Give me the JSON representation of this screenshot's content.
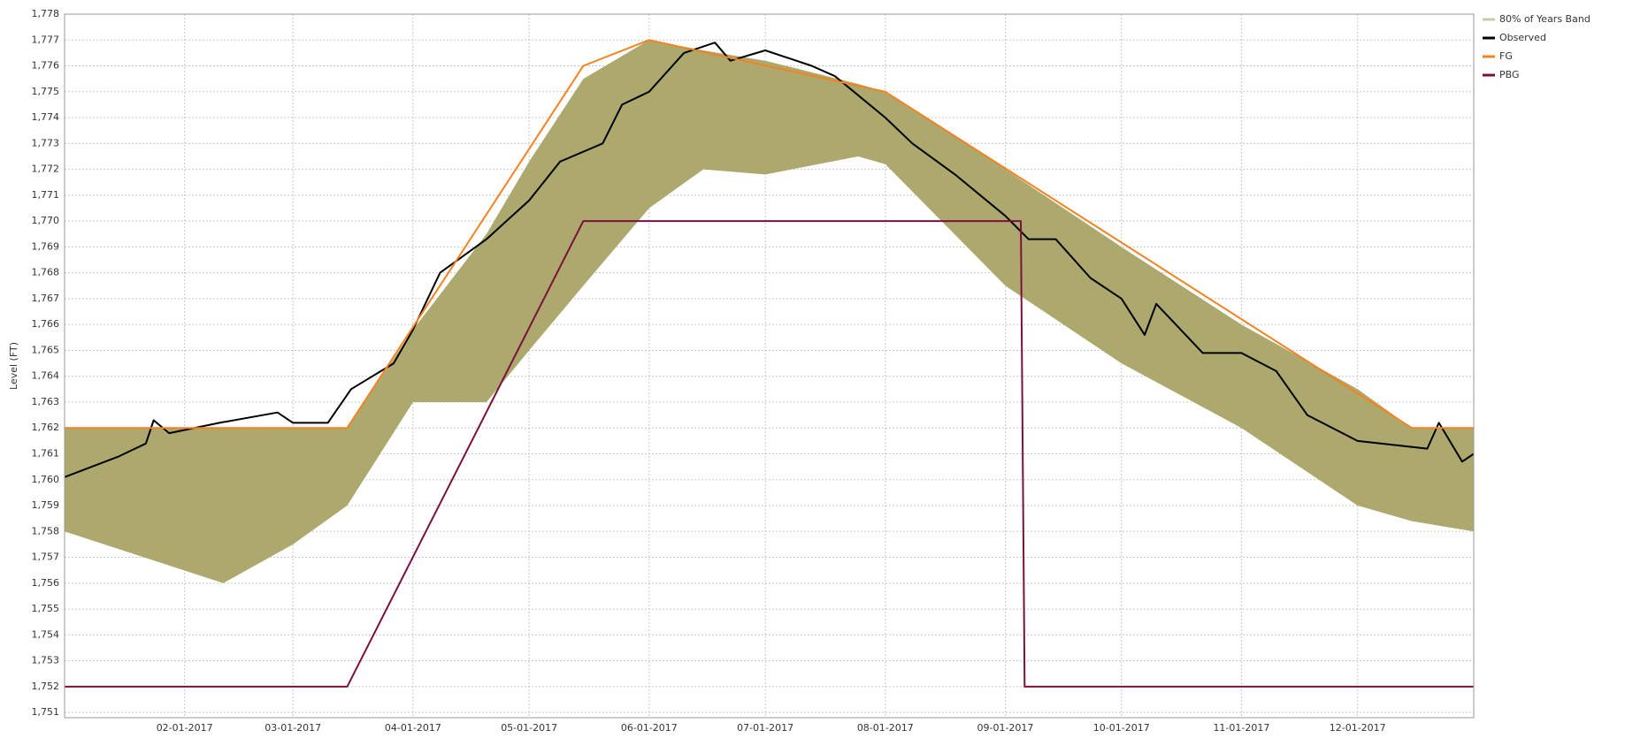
{
  "chart_data": {
    "type": "line",
    "ylabel": "Level (FT)",
    "xlim": [
      "2017-01-01",
      "2017-12-31"
    ],
    "xticks": [
      {
        "value": "2017-02-01",
        "label": "02-01-2017"
      },
      {
        "value": "2017-03-01",
        "label": "03-01-2017"
      },
      {
        "value": "2017-04-01",
        "label": "04-01-2017"
      },
      {
        "value": "2017-05-01",
        "label": "05-01-2017"
      },
      {
        "value": "2017-06-01",
        "label": "06-01-2017"
      },
      {
        "value": "2017-07-01",
        "label": "07-01-2017"
      },
      {
        "value": "2017-08-01",
        "label": "08-01-2017"
      },
      {
        "value": "2017-09-01",
        "label": "09-01-2017"
      },
      {
        "value": "2017-10-01",
        "label": "10-01-2017"
      },
      {
        "value": "2017-11-01",
        "label": "11-01-2017"
      },
      {
        "value": "2017-12-01",
        "label": "12-01-2017"
      }
    ],
    "ylim": [
      1750.8,
      1778
    ],
    "yticks": [
      {
        "value": 1751,
        "label": "1,751"
      },
      {
        "value": 1752,
        "label": "1,752"
      },
      {
        "value": 1753,
        "label": "1,753"
      },
      {
        "value": 1754,
        "label": "1,754"
      },
      {
        "value": 1755,
        "label": "1,755"
      },
      {
        "value": 1756,
        "label": "1,756"
      },
      {
        "value": 1757,
        "label": "1,757"
      },
      {
        "value": 1758,
        "label": "1,758"
      },
      {
        "value": 1759,
        "label": "1,759"
      },
      {
        "value": 1760,
        "label": "1,760"
      },
      {
        "value": 1761,
        "label": "1,761"
      },
      {
        "value": 1762,
        "label": "1,762"
      },
      {
        "value": 1763,
        "label": "1,763"
      },
      {
        "value": 1764,
        "label": "1,764"
      },
      {
        "value": 1765,
        "label": "1,765"
      },
      {
        "value": 1766,
        "label": "1,766"
      },
      {
        "value": 1767,
        "label": "1,767"
      },
      {
        "value": 1768,
        "label": "1,768"
      },
      {
        "value": 1769,
        "label": "1,769"
      },
      {
        "value": 1770,
        "label": "1,770"
      },
      {
        "value": 1771,
        "label": "1,771"
      },
      {
        "value": 1772,
        "label": "1,772"
      },
      {
        "value": 1773,
        "label": "1,773"
      },
      {
        "value": 1774,
        "label": "1,774"
      },
      {
        "value": 1775,
        "label": "1,775"
      },
      {
        "value": 1776,
        "label": "1,776"
      },
      {
        "value": 1777,
        "label": "1,777"
      },
      {
        "value": 1778,
        "label": "1,778"
      }
    ],
    "grid": true,
    "legend": "right",
    "series": [
      {
        "name": "80% of Years Band",
        "color": "#ada86d",
        "legend_color": "#c9c9a8",
        "x": [
          "2017-01-01",
          "2017-02-11",
          "2017-03-01",
          "2017-03-15",
          "2017-04-01",
          "2017-04-20",
          "2017-05-01",
          "2017-05-15",
          "2017-06-01",
          "2017-06-15",
          "2017-07-01",
          "2017-07-25",
          "2017-08-01",
          "2017-09-01",
          "2017-10-01",
          "2017-11-01",
          "2017-12-01",
          "2017-12-15",
          "2017-12-31"
        ],
        "upper": [
          1762,
          1762,
          1762,
          1762,
          1765.8,
          1769.5,
          1772.3,
          1775.5,
          1777,
          1776.6,
          1776.2,
          1775.3,
          1775,
          1772,
          1769,
          1766,
          1763.5,
          1762,
          1762
        ],
        "lower": [
          1758,
          1756,
          1757.5,
          1759,
          1763,
          1763,
          1765,
          1767.5,
          1770.5,
          1772,
          1771.8,
          1772.5,
          1772.2,
          1767.5,
          1764.5,
          1762,
          1759,
          1758.4,
          1758
        ]
      },
      {
        "name": "Observed",
        "color": "#000000",
        "x": [
          "2017-01-01",
          "2017-01-15",
          "2017-01-22",
          "2017-01-24",
          "2017-01-28",
          "2017-02-10",
          "2017-02-25",
          "2017-03-01",
          "2017-03-10",
          "2017-03-16",
          "2017-03-27",
          "2017-04-01",
          "2017-04-08",
          "2017-04-20",
          "2017-05-01",
          "2017-05-09",
          "2017-05-20",
          "2017-05-25",
          "2017-06-01",
          "2017-06-10",
          "2017-06-18",
          "2017-06-22",
          "2017-07-01",
          "2017-07-13",
          "2017-07-19",
          "2017-08-01",
          "2017-08-08",
          "2017-08-19",
          "2017-09-01",
          "2017-09-07",
          "2017-09-14",
          "2017-09-23",
          "2017-10-01",
          "2017-10-07",
          "2017-10-10",
          "2017-10-22",
          "2017-11-01",
          "2017-11-10",
          "2017-11-18",
          "2017-12-01",
          "2017-12-19",
          "2017-12-22",
          "2017-12-28",
          "2017-12-31"
        ],
        "values": [
          1760.1,
          1760.9,
          1761.4,
          1762.3,
          1761.8,
          1762.2,
          1762.6,
          1762.2,
          1762.2,
          1763.5,
          1764.5,
          1765.8,
          1768,
          1769.3,
          1770.8,
          1772.3,
          1773,
          1774.5,
          1775,
          1776.5,
          1776.9,
          1776.2,
          1776.6,
          1776,
          1775.6,
          1774,
          1773,
          1771.8,
          1770.2,
          1769.3,
          1769.3,
          1767.8,
          1767,
          1765.6,
          1766.8,
          1764.9,
          1764.9,
          1764.2,
          1762.5,
          1761.5,
          1761.2,
          1762.2,
          1760.7,
          1761
        ]
      },
      {
        "name": "FG",
        "color": "#f58220",
        "x": [
          "2017-01-01",
          "2017-03-15",
          "2017-05-15",
          "2017-06-01",
          "2017-08-01",
          "2017-12-15",
          "2017-12-31"
        ],
        "values": [
          1762,
          1762,
          1776,
          1777,
          1775,
          1762,
          1762
        ]
      },
      {
        "name": "PBG",
        "color": "#7b1040",
        "x": [
          "2017-01-01",
          "2017-03-15",
          "2017-05-15",
          "2017-09-05",
          "2017-09-06",
          "2017-12-31"
        ],
        "values": [
          1752,
          1752,
          1770,
          1770,
          1752,
          1752
        ]
      }
    ]
  }
}
